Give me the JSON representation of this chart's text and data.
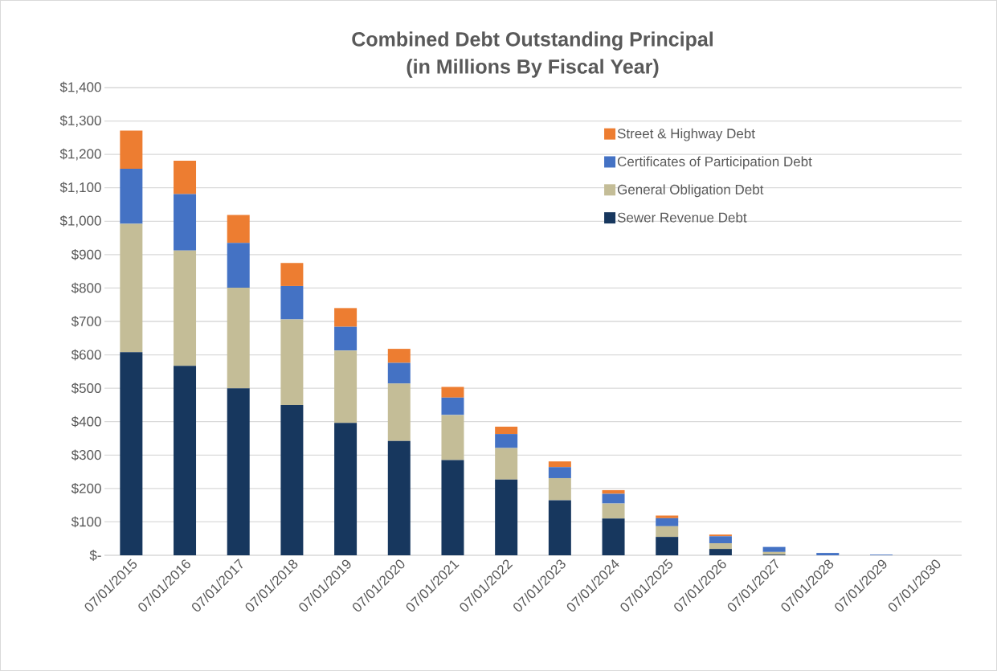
{
  "chart_data": {
    "type": "bar",
    "stacked": true,
    "title": "Combined Debt Outstanding Principal\n(in Millions By Fiscal Year)",
    "categories": [
      "07/01/2015",
      "07/01/2016",
      "07/01/2017",
      "07/01/2018",
      "07/01/2019",
      "07/01/2020",
      "07/01/2021",
      "07/01/2022",
      "07/01/2023",
      "07/01/2024",
      "07/01/2025",
      "07/01/2026",
      "07/01/2027",
      "07/01/2028",
      "07/01/2029",
      "07/01/2030"
    ],
    "series": [
      {
        "name": "Sewer Revenue Debt",
        "color": "#17375e",
        "values": [
          608,
          567,
          500,
          450,
          396,
          342,
          285,
          227,
          165,
          110,
          55,
          19,
          2,
          0,
          0,
          0
        ]
      },
      {
        "name": "General Obligation Debt",
        "color": "#c4bd97",
        "values": [
          384,
          345,
          301,
          256,
          217,
          172,
          135,
          94,
          66,
          45,
          32,
          17,
          8,
          null,
          0,
          0
        ]
      },
      {
        "name": "Certificates of Participation Debt",
        "color": "#4472c4",
        "values": [
          165,
          169,
          134,
          100,
          71,
          62,
          52,
          42,
          33,
          29,
          24,
          21,
          15,
          7,
          2,
          null
        ]
      },
      {
        "name": "Street & Highway Debt",
        "color": "#ed7d31",
        "values": [
          114,
          100,
          84,
          69,
          56,
          42,
          32,
          22,
          17,
          11,
          8,
          5,
          null,
          0,
          0,
          0
        ]
      }
    ],
    "ylim": [
      0,
      1400
    ],
    "yticks": [
      {
        "value": 0,
        "label": "$-"
      },
      {
        "value": 100,
        "label": "$100"
      },
      {
        "value": 200,
        "label": "$200"
      },
      {
        "value": 300,
        "label": "$300"
      },
      {
        "value": 400,
        "label": "$400"
      },
      {
        "value": 500,
        "label": "$500"
      },
      {
        "value": 600,
        "label": "$600"
      },
      {
        "value": 700,
        "label": "$700"
      },
      {
        "value": 800,
        "label": "$800"
      },
      {
        "value": 900,
        "label": "$900"
      },
      {
        "value": 1000,
        "label": "$1,000"
      },
      {
        "value": 1100,
        "label": "$1,100"
      },
      {
        "value": 1200,
        "label": "$1,200"
      },
      {
        "value": 1300,
        "label": "$1,300"
      },
      {
        "value": 1400,
        "label": "$1,400"
      }
    ],
    "grid": "y",
    "legend": "top right"
  }
}
